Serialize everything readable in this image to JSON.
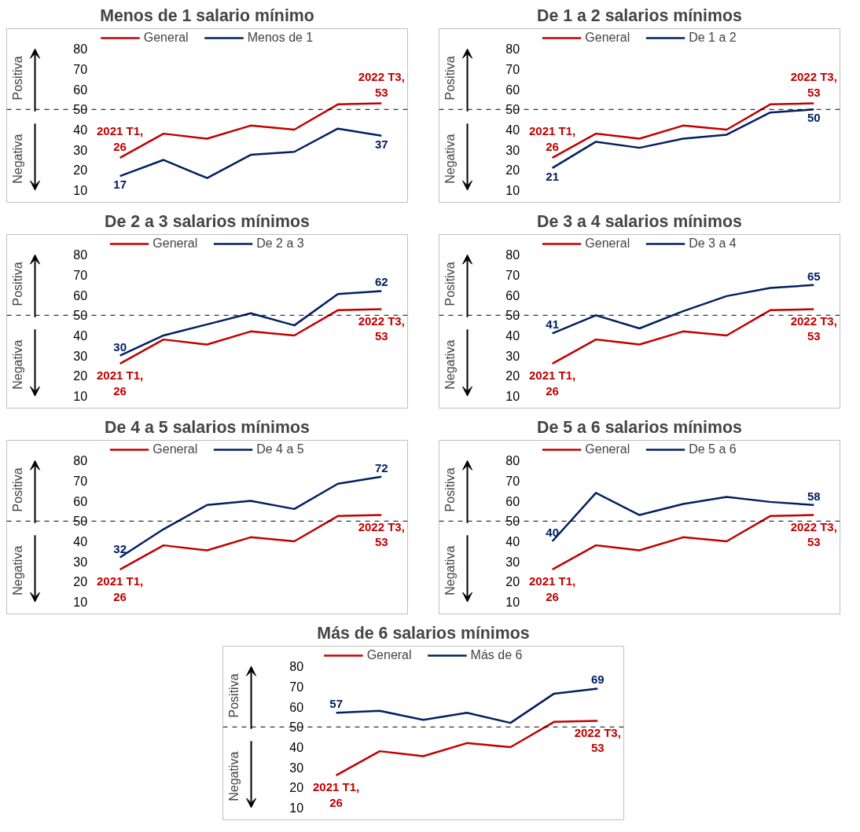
{
  "chart_data": [
    {
      "type": "line",
      "title": "Menos de 1 salario mínimo",
      "categories": [
        null,
        null,
        null,
        null,
        null,
        null,
        null
      ],
      "ylim": [
        4,
        90
      ],
      "yticks": [
        10,
        20,
        30,
        40,
        50,
        60,
        70,
        80
      ],
      "grid": false,
      "legend": "top",
      "tick_labels": "y",
      "annotations": [
        "Positiva",
        "Negativa"
      ],
      "ref_lines": [
        {
          "axis": "y",
          "value": 50,
          "color": "#000000",
          "line_style": "dashed"
        }
      ],
      "series": [
        {
          "name": "General",
          "color": "#c00000",
          "values": [
            26,
            38,
            35.5,
            42,
            40,
            52.5,
            53
          ],
          "value_labels": [
            "2021 T1,\n26",
            null,
            null,
            null,
            null,
            null,
            "2022 T3,\n53"
          ]
        },
        {
          "name": "Menos de 1",
          "color": "#002060",
          "values": [
            17,
            25,
            16,
            27.5,
            29,
            40.5,
            37
          ],
          "value_labels": [
            "17",
            null,
            null,
            null,
            null,
            null,
            "37"
          ]
        }
      ]
    },
    {
      "type": "line",
      "title": "De 1 a 2 salarios mínimos",
      "categories": [
        null,
        null,
        null,
        null,
        null,
        null,
        null
      ],
      "ylim": [
        4,
        90
      ],
      "yticks": [
        10,
        20,
        30,
        40,
        50,
        60,
        70,
        80
      ],
      "grid": false,
      "legend": "top",
      "tick_labels": "y",
      "annotations": [
        "Positiva",
        "Negativa"
      ],
      "ref_lines": [
        {
          "axis": "y",
          "value": 50,
          "color": "#000000",
          "line_style": "dashed"
        }
      ],
      "series": [
        {
          "name": "General",
          "color": "#c00000",
          "values": [
            26,
            38,
            35.5,
            42,
            40,
            52.5,
            53
          ],
          "value_labels": [
            "2021 T1,\n26",
            null,
            null,
            null,
            null,
            null,
            "2022 T3,\n53"
          ]
        },
        {
          "name": "De 1 a 2",
          "color": "#002060",
          "values": [
            21,
            34,
            31,
            35.5,
            37.5,
            48.5,
            50
          ],
          "value_labels": [
            "21",
            null,
            null,
            null,
            null,
            null,
            "50"
          ]
        }
      ]
    },
    {
      "type": "line",
      "title": "De 2 a 3 salarios mínimos",
      "categories": [
        null,
        null,
        null,
        null,
        null,
        null,
        null
      ],
      "ylim": [
        4,
        90
      ],
      "yticks": [
        10,
        20,
        30,
        40,
        50,
        60,
        70,
        80
      ],
      "grid": false,
      "legend": "top",
      "tick_labels": "y",
      "annotations": [
        "Positiva",
        "Negativa"
      ],
      "ref_lines": [
        {
          "axis": "y",
          "value": 50,
          "color": "#000000",
          "line_style": "dashed"
        }
      ],
      "series": [
        {
          "name": "General",
          "color": "#c00000",
          "values": [
            26,
            38,
            35.5,
            42,
            40,
            52.5,
            53
          ],
          "value_labels": [
            "2021 T1,\n26",
            null,
            null,
            null,
            null,
            null,
            "2022 T3,\n53"
          ]
        },
        {
          "name": "De 2 a 3",
          "color": "#002060",
          "values": [
            30,
            40,
            45.5,
            51,
            45,
            60.5,
            62
          ],
          "value_labels": [
            "30",
            null,
            null,
            null,
            null,
            null,
            "62"
          ]
        }
      ]
    },
    {
      "type": "line",
      "title": "De 3 a 4 salarios mínimos",
      "categories": [
        null,
        null,
        null,
        null,
        null,
        null,
        null
      ],
      "ylim": [
        4,
        90
      ],
      "yticks": [
        10,
        20,
        30,
        40,
        50,
        60,
        70,
        80
      ],
      "grid": false,
      "legend": "top",
      "tick_labels": "y",
      "annotations": [
        "Positiva",
        "Negativa"
      ],
      "ref_lines": [
        {
          "axis": "y",
          "value": 50,
          "color": "#000000",
          "line_style": "dashed"
        }
      ],
      "series": [
        {
          "name": "General",
          "color": "#c00000",
          "values": [
            26,
            38,
            35.5,
            42,
            40,
            52.5,
            53
          ],
          "value_labels": [
            "2021 T1,\n26",
            null,
            null,
            null,
            null,
            null,
            "2022 T3,\n53"
          ]
        },
        {
          "name": "De 3 a 4",
          "color": "#002060",
          "values": [
            41,
            50,
            43.5,
            52,
            59.5,
            63.5,
            65
          ],
          "value_labels": [
            "41",
            null,
            null,
            null,
            null,
            null,
            "65"
          ]
        }
      ]
    },
    {
      "type": "line",
      "title": "De 4 a 5 salarios mínimos",
      "categories": [
        null,
        null,
        null,
        null,
        null,
        null,
        null
      ],
      "ylim": [
        4,
        90
      ],
      "yticks": [
        10,
        20,
        30,
        40,
        50,
        60,
        70,
        80
      ],
      "grid": false,
      "legend": "top",
      "tick_labels": "y",
      "annotations": [
        "Positiva",
        "Negativa"
      ],
      "ref_lines": [
        {
          "axis": "y",
          "value": 50,
          "color": "#000000",
          "line_style": "dashed"
        }
      ],
      "series": [
        {
          "name": "General",
          "color": "#c00000",
          "values": [
            26,
            38,
            35.5,
            42,
            40,
            52.5,
            53
          ],
          "value_labels": [
            "2021 T1,\n26",
            null,
            null,
            null,
            null,
            null,
            "2022 T3,\n53"
          ]
        },
        {
          "name": "De 4 a 5",
          "color": "#002060",
          "values": [
            32,
            46,
            58,
            60,
            56,
            68.5,
            72
          ],
          "value_labels": [
            "32",
            null,
            null,
            null,
            null,
            null,
            "72"
          ]
        }
      ]
    },
    {
      "type": "line",
      "title": "De 5 a 6 salarios mínimos",
      "categories": [
        null,
        null,
        null,
        null,
        null,
        null,
        null
      ],
      "ylim": [
        4,
        90
      ],
      "yticks": [
        10,
        20,
        30,
        40,
        50,
        60,
        70,
        80
      ],
      "grid": false,
      "legend": "top",
      "tick_labels": "y",
      "annotations": [
        "Positiva",
        "Negativa"
      ],
      "ref_lines": [
        {
          "axis": "y",
          "value": 50,
          "color": "#000000",
          "line_style": "dashed"
        }
      ],
      "series": [
        {
          "name": "General",
          "color": "#c00000",
          "values": [
            26,
            38,
            35.5,
            42,
            40,
            52.5,
            53
          ],
          "value_labels": [
            "2021 T1,\n26",
            null,
            null,
            null,
            null,
            null,
            "2022 T3,\n53"
          ]
        },
        {
          "name": "De 5 a 6",
          "color": "#002060",
          "values": [
            40,
            64,
            53,
            58.5,
            62,
            59.5,
            58
          ],
          "value_labels": [
            "40",
            null,
            null,
            null,
            null,
            null,
            "58"
          ]
        }
      ]
    },
    {
      "type": "line",
      "title": "Más de 6 salarios mínimos",
      "categories": [
        null,
        null,
        null,
        null,
        null,
        null,
        null
      ],
      "ylim": [
        4,
        90
      ],
      "yticks": [
        10,
        20,
        30,
        40,
        50,
        60,
        70,
        80
      ],
      "grid": false,
      "legend": "top",
      "tick_labels": "y",
      "annotations": [
        "Positiva",
        "Negativa"
      ],
      "ref_lines": [
        {
          "axis": "y",
          "value": 50,
          "color": "#000000",
          "line_style": "dashed"
        }
      ],
      "series": [
        {
          "name": "General",
          "color": "#c00000",
          "values": [
            26,
            38,
            35.5,
            42,
            40,
            52.5,
            53
          ],
          "value_labels": [
            "2021 T1,\n26",
            null,
            null,
            null,
            null,
            null,
            "2022 T3,\n53"
          ]
        },
        {
          "name": "Más de 6",
          "color": "#002060",
          "values": [
            57,
            58,
            53.5,
            57,
            52,
            66.5,
            69
          ],
          "value_labels": [
            "57",
            null,
            null,
            null,
            null,
            null,
            "69"
          ]
        }
      ]
    }
  ]
}
